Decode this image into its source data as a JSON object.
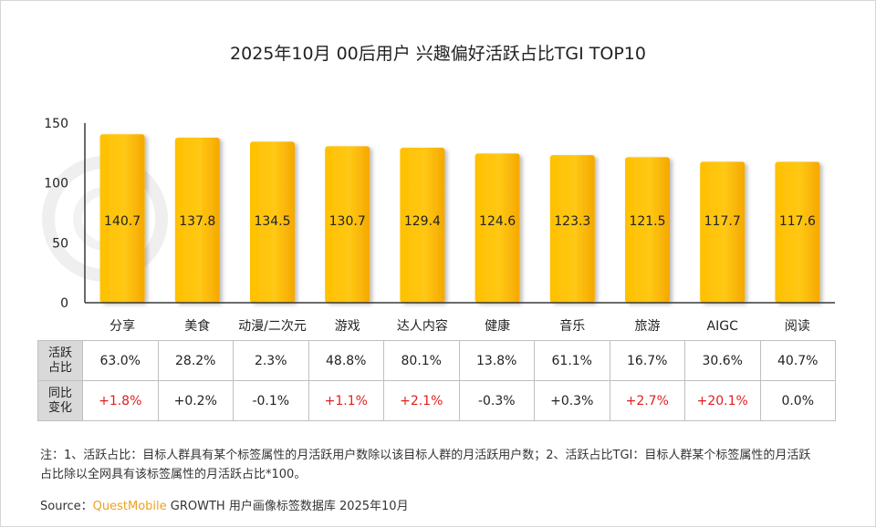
{
  "title": "2025年10月 00后用户 兴趣偏好活跃占比TGI TOP10",
  "chart_data": {
    "type": "bar",
    "categories": [
      "分享",
      "美食",
      "动漫/二次元",
      "游戏",
      "达人内容",
      "健康",
      "音乐",
      "旅游",
      "AIGC",
      "阅读"
    ],
    "values": [
      140.7,
      137.8,
      134.5,
      130.7,
      129.4,
      124.6,
      123.3,
      121.5,
      117.7,
      117.6
    ],
    "value_labels": [
      "140.7",
      "137.8",
      "134.5",
      "130.7",
      "129.4",
      "124.6",
      "123.3",
      "121.5",
      "117.7",
      "117.6"
    ],
    "ylim": [
      0,
      150
    ],
    "yticks": [
      0,
      50,
      100,
      150
    ],
    "ytick_labels": [
      "0",
      "50",
      "100",
      "150"
    ],
    "bar_color": "#FFC000",
    "grid": false
  },
  "table": {
    "rows": [
      {
        "head": [
          "活跃",
          "占比"
        ],
        "values": [
          "63.0%",
          "28.2%",
          "2.3%",
          "48.8%",
          "80.1%",
          "13.8%",
          "61.1%",
          "16.7%",
          "30.6%",
          "40.7%"
        ]
      },
      {
        "head": [
          "同比",
          "变化"
        ],
        "values": [
          "+1.8%",
          "+0.2%",
          "-0.1%",
          "+1.1%",
          "+2.1%",
          "-0.3%",
          "+0.3%",
          "+2.7%",
          "+20.1%",
          "0.0%"
        ],
        "highlight": [
          true,
          false,
          false,
          true,
          true,
          false,
          false,
          true,
          true,
          false
        ],
        "highlight_color": "#E02020"
      }
    ]
  },
  "note": "注：1、活跃占比：目标人群具有某个标签属性的月活跃用户数除以该目标人群的月活跃用户数；2、活跃占比TGI：目标人群某个标签属性的月活跃占比除以全网具有该标签属性的月活跃占比*100。",
  "source": {
    "prefix": "Source：",
    "brand": "QuestMobile",
    "suffix": " GROWTH 用户画像标签数据库 2025年10月"
  }
}
